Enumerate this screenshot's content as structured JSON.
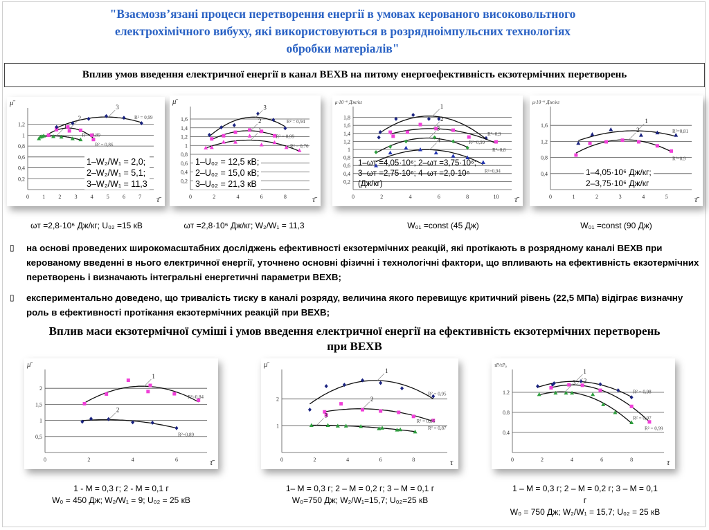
{
  "title": {
    "lines": [
      "\"Взаємозв’язані процеси перетворення енергії в умовах керованого високовольтного",
      "електрохімічного вибуху, які використовуються в розрядноімпульсних технологіях",
      "обробки матеріалів\""
    ]
  },
  "section1": {
    "heading": "Вплив умов введення електричної енергії в канал ВЕХВ на питому енергоефективність екзотермічних перетворень"
  },
  "captions_row1": [
    "ωт =2,8·10⁶ Дж/кг;  U₀₂ =15 кВ",
    "ωт =2,8·10⁶ Дж/кг; W₂/W₁ = 11,3",
    "W₀₁ =const (45 Дж)",
    "W₀₁ =const (90 Дж)"
  ],
  "bullets": [
    {
      "glyph": "▯",
      "text": "на основі проведених широкомасштабних досліджень ефективності екзотермічних реакцій, які протікають в розрядному каналі ВЕХВ при керованому введенні в нього електричної енергії, уточнено основні фізичні і технологічні фактори, що впливають на ефективність екзотермічних перетворень і визначають інтегральні енергетичні параметри ВЕХВ;"
    },
    {
      "glyph": "▯",
      "text": "експериментально доведено, що тривалість тиску в каналі розряду, величина якого перевищує критичний рівень (22,5 МПа) відіграє визначну роль в ефективності протікання екзотермічних реакцій при ВЕХВ;"
    }
  ],
  "section2": {
    "heading_lines": [
      "Вплив маси екзотермічної суміші і умов введення електричної енергії на ефективність екзотермічних перетворень",
      "при ВЕХВ"
    ]
  },
  "captions_row2": [
    [
      "1 -  M = 0,3 г; 2 -  M = 0,1 г",
      "W₀ = 450 Дж;  W₂/W₁ = 9; U₀₂ = 25 кВ"
    ],
    [
      "1–  M = 0,3 г;  2 – M = 0,2 г; 3 –  M = 0,1 г",
      "W₀=750 Дж; W₂/W₁=15,7; U₀₂=25 кВ"
    ],
    [
      "1 –  M =  0,3 г; 2 – M = 0,2 г;  3 – M = 0,1",
      "г",
      "W₀ = 750 Дж; W₂/W₁ = 15,7; U₀₂ = 25 кВ"
    ]
  ],
  "colors": {
    "title": "#2a62c4",
    "navy": "#1a2380",
    "magenta": "#f040d8",
    "green": "#2e9e3e",
    "blue": "#2436b0",
    "curve": "#111111",
    "grid": "#555555"
  },
  "chart_data": [
    {
      "type": "scatter",
      "ylabel": "μ̄",
      "xlabel": "τ̄",
      "xlim": [
        0,
        7.6
      ],
      "ylim": [
        0,
        1.45
      ],
      "xticks": [
        "0",
        "1",
        "2",
        "3",
        "4",
        "5",
        "6",
        "7"
      ],
      "xtick_values": [
        0,
        1,
        2,
        3,
        4,
        5,
        6,
        7
      ],
      "yticks": [
        "0,2",
        "0,4",
        "0,6",
        "0,8",
        "1",
        "1,2"
      ],
      "ytick_values": [
        0.2,
        0.4,
        0.6,
        0.8,
        1,
        1.2
      ],
      "legend": [
        "1–W₂/W₁ = 2,0;",
        "2–W₂/W₁ = 5,1;",
        "3–W₂/W₁ = 11,3"
      ],
      "series": [
        {
          "label": "1",
          "r2": "R² = 0,89",
          "marker": "triangle",
          "color": "green",
          "points": [
            [
              0.7,
              0.94
            ],
            [
              0.8,
              0.97
            ],
            [
              0.9,
              0.98
            ],
            [
              1.0,
              0.99
            ],
            [
              1.3,
              1.0
            ],
            [
              1.6,
              0.98
            ],
            [
              2.1,
              0.97
            ],
            [
              2.8,
              0.94
            ],
            [
              3.3,
              0.92
            ]
          ]
        },
        {
          "label": "2",
          "r2": "R² = 0,86",
          "marker": "square",
          "color": "magenta",
          "points": [
            [
              1.3,
              1.0
            ],
            [
              1.8,
              1.1
            ],
            [
              1.8,
              1.13
            ],
            [
              2.5,
              1.15
            ],
            [
              2.6,
              1.08
            ],
            [
              3.3,
              1.09
            ],
            [
              4.0,
              1.0
            ],
            [
              4.1,
              0.92
            ]
          ]
        },
        {
          "label": "3",
          "r2": "R² = 0,99",
          "marker": "diamond",
          "color": "navy",
          "points": [
            [
              1.8,
              1.15
            ],
            [
              2.8,
              1.22
            ],
            [
              3.8,
              1.3
            ],
            [
              4.9,
              1.35
            ],
            [
              6.0,
              1.32
            ],
            [
              7.1,
              1.22
            ]
          ]
        }
      ]
    },
    {
      "type": "scatter",
      "ylabel": "μ̄",
      "xlabel": "τ̄",
      "xlim": [
        0,
        9.7
      ],
      "ylim": [
        0,
        1.82
      ],
      "xticks": [
        "0",
        "2",
        "4",
        "6",
        "8"
      ],
      "xtick_values": [
        0,
        2,
        4,
        6,
        8
      ],
      "yticks": [
        "0,2",
        "0,4",
        "0,6",
        "0,8",
        "1",
        "1,2",
        "1,4",
        "1,6"
      ],
      "ytick_values": [
        0.2,
        0.4,
        0.6,
        0.8,
        1,
        1.2,
        1.4,
        1.6
      ],
      "legend": [
        "1–U₀₂ = 12,5 кВ;",
        "2–U₀₂ = 15,0 кВ;",
        "3–U₀₂ = 21,3 кВ"
      ],
      "series": [
        {
          "label": "1",
          "r2": "R² = 0,76",
          "marker": "triangle",
          "color": "magenta",
          "points": [
            [
              1.3,
              0.95
            ],
            [
              1.8,
              0.96
            ],
            [
              2.8,
              1.08
            ],
            [
              3.8,
              1.08
            ],
            [
              5,
              1.22
            ],
            [
              6,
              1.02
            ],
            [
              7.1,
              1.07
            ],
            [
              8.1,
              0.96
            ],
            [
              9.2,
              0.89
            ]
          ]
        },
        {
          "label": "2",
          "r2": "R² = 0,99",
          "marker": "square",
          "color": "magenta",
          "points": [
            [
              1.8,
              1.15
            ],
            [
              2.8,
              1.22
            ],
            [
              3.8,
              1.3
            ],
            [
              5,
              1.35
            ],
            [
              6,
              1.32
            ],
            [
              7.1,
              1.22
            ]
          ]
        },
        {
          "label": "3",
          "r2": "R² = 0,94",
          "marker": "diamond",
          "color": "navy",
          "points": [
            [
              1.6,
              1.24
            ],
            [
              2.6,
              1.41
            ],
            [
              3.7,
              1.46
            ],
            [
              5.7,
              1.72
            ],
            [
              7,
              1.58
            ],
            [
              8,
              1.39
            ]
          ]
        }
      ]
    },
    {
      "type": "scatter",
      "ylabel": "μ·10⁻⁶ Дж/кг",
      "xlabel": "τ̄",
      "xlim": [
        0,
        10.8
      ],
      "ylim": [
        0,
        2.0
      ],
      "xticks": [
        "0",
        "2",
        "4",
        "6",
        "8",
        "10"
      ],
      "xtick_values": [
        0,
        2,
        4,
        6,
        8,
        10
      ],
      "yticks": [
        "0,2",
        "0,4",
        "0,6",
        "0,8",
        "1",
        "1,2",
        "1,4",
        "1,6",
        "1,8"
      ],
      "ytick_values": [
        0.2,
        0.4,
        0.6,
        0.8,
        1,
        1.2,
        1.4,
        1.6,
        1.8
      ],
      "legend": [
        "1–ωт =4,05·10⁶; 2–ωт =3,75·10⁶;",
        "3–ωт =2,75·10⁶; 4–ωт =2,0·10⁶",
        "(Дж/кг)"
      ],
      "series": [
        {
          "label": "1",
          "r2": "R²=0,9",
          "marker": "diamond",
          "color": "navy",
          "points": [
            [
              1.8,
              1.3
            ],
            [
              1.9,
              1.43
            ],
            [
              3,
              1.76
            ],
            [
              4.2,
              1.86
            ],
            [
              5.3,
              1.76
            ],
            [
              6,
              1.76
            ],
            [
              9.3,
              1.28
            ]
          ]
        },
        {
          "label": "2",
          "r2": "R²=0,8",
          "marker": "square",
          "color": "magenta",
          "points": [
            [
              2.6,
              1.43
            ],
            [
              2.8,
              1.33
            ],
            [
              3.8,
              1.43
            ],
            [
              4.7,
              1.62
            ],
            [
              5.8,
              1.52
            ],
            [
              7,
              1.48
            ],
            [
              8.1,
              1.31
            ],
            [
              10,
              1.19
            ]
          ]
        },
        {
          "label": "3",
          "r2": "R²=0,99",
          "marker": "diamond",
          "color": "green",
          "points": [
            [
              1.6,
              0.93
            ],
            [
              2.6,
              1.07
            ],
            [
              3.7,
              1.2
            ],
            [
              5.7,
              1.3
            ],
            [
              7,
              1.2
            ],
            [
              8,
              1.04
            ]
          ]
        },
        {
          "label": "4",
          "r2": "R²=0,94",
          "marker": "triangle",
          "color": "blue",
          "points": [
            [
              1.6,
              0.6
            ],
            [
              2.6,
              0.92
            ],
            [
              3.7,
              1.04
            ],
            [
              4.7,
              1.0
            ],
            [
              5.8,
              0.92
            ],
            [
              7,
              0.84
            ],
            [
              8,
              0.8
            ],
            [
              9.1,
              0.68
            ]
          ]
        }
      ]
    },
    {
      "type": "scatter",
      "ylabel": "μ·10⁻⁶ Дж/кг",
      "xlabel": "τ̄",
      "xlim": [
        0,
        5.9
      ],
      "ylim": [
        0,
        2.0
      ],
      "xticks": [
        "0",
        "1",
        "2",
        "3",
        "4",
        "5"
      ],
      "xtick_values": [
        0,
        1,
        2,
        3,
        4,
        5
      ],
      "yticks": [
        "0,4",
        "0,8",
        "1,2",
        "1,6"
      ],
      "ytick_values": [
        0.4,
        0.8,
        1.2,
        1.6
      ],
      "legend": [
        "1–4,05·10⁶ Дж/кг;",
        "2–3,75·10⁶ Дж/кг"
      ],
      "series": [
        {
          "label": "1",
          "r2": "R²=0,81",
          "marker": "triangle",
          "color": "navy",
          "points": [
            [
              1.2,
              1.16
            ],
            [
              1.8,
              1.38
            ],
            [
              2.6,
              1.5
            ],
            [
              3.9,
              1.36
            ],
            [
              4.6,
              1.42
            ],
            [
              5.4,
              1.36
            ]
          ]
        },
        {
          "label": "2",
          "r2": "R²=0,9",
          "marker": "square",
          "color": "magenta",
          "points": [
            [
              1.1,
              0.86
            ],
            [
              1.7,
              1.15
            ],
            [
              2.4,
              1.19
            ],
            [
              3.1,
              1.23
            ],
            [
              3.8,
              1.19
            ],
            [
              4.6,
              1.09
            ],
            [
              5.2,
              0.96
            ]
          ]
        }
      ]
    },
    {
      "type": "scatter",
      "ylabel": "μ̄",
      "xlabel": "τ̄",
      "xlim": [
        0,
        7.2
      ],
      "ylim": [
        0,
        2.5
      ],
      "xticks": [
        "0",
        "2",
        "4",
        "6"
      ],
      "xtick_values": [
        0,
        2,
        4,
        6
      ],
      "yticks": [
        "0,5",
        "1",
        "1,5",
        "2"
      ],
      "ytick_values": [
        0.5,
        1,
        1.5,
        2
      ],
      "legend": [],
      "series": [
        {
          "label": "1",
          "r2": "R²=0,84",
          "marker": "square",
          "color": "magenta",
          "points": [
            [
              1.8,
              1.52
            ],
            [
              2.8,
              1.82
            ],
            [
              3.8,
              2.25
            ],
            [
              4.8,
              2.09
            ],
            [
              4.7,
              1.9
            ],
            [
              5.9,
              1.83
            ],
            [
              7,
              1.63
            ]
          ]
        },
        {
          "label": "2",
          "r2": "R²=0,89",
          "marker": "diamond",
          "color": "navy",
          "points": [
            [
              1.7,
              0.96
            ],
            [
              2.1,
              1.05
            ],
            [
              2.9,
              1.04
            ],
            [
              4,
              0.94
            ],
            [
              4.9,
              0.93
            ],
            [
              6,
              0.76
            ]
          ]
        }
      ]
    },
    {
      "type": "scatter",
      "ylabel": "μ̄",
      "xlabel": "τ",
      "xlim": [
        0,
        9.8
      ],
      "ylim": [
        0,
        3.0
      ],
      "xticks": [
        "0",
        "2",
        "4",
        "6",
        "8"
      ],
      "xtick_values": [
        0,
        2,
        4,
        6,
        8
      ],
      "yticks": [
        "1",
        "2"
      ],
      "ytick_values": [
        1,
        2
      ],
      "legend": [],
      "series": [
        {
          "label": "1",
          "r2": "R² = 0,95",
          "marker": "diamond",
          "color": "navy",
          "points": [
            [
              1.7,
              1.6
            ],
            [
              2.7,
              2.48
            ],
            [
              3.8,
              2.53
            ],
            [
              4.9,
              2.7
            ],
            [
              6,
              2.6
            ],
            [
              7.3,
              2.4
            ],
            [
              9.2,
              2.1
            ]
          ]
        },
        {
          "label": "2",
          "r2": "R² = 0,87",
          "marker": "square",
          "color": "magenta",
          "points": [
            [
              2.6,
              1.52
            ],
            [
              2.7,
              1.4
            ],
            [
              3.6,
              1.82
            ],
            [
              4.9,
              1.6
            ],
            [
              6,
              1.55
            ],
            [
              7.1,
              1.5
            ],
            [
              8,
              1.35
            ],
            [
              9.2,
              1.2
            ]
          ]
        },
        {
          "label": "3",
          "r2": "R² = 0,86",
          "marker": "triangle",
          "color": "green",
          "points": [
            [
              1.8,
              1.02
            ],
            [
              2.8,
              1.02
            ],
            [
              3.4,
              1.0
            ],
            [
              3.9,
              1.0
            ],
            [
              4.8,
              0.98
            ],
            [
              5.9,
              0.9
            ],
            [
              6.1,
              0.92
            ],
            [
              7,
              0.85
            ],
            [
              7.2,
              0.86
            ],
            [
              8.1,
              0.78
            ]
          ]
        }
      ]
    },
    {
      "type": "scatter",
      "ylabel": "τP/τP₀",
      "xlabel": "τ",
      "xlim": [
        0,
        9.9
      ],
      "ylim": [
        0,
        1.6
      ],
      "xticks": [
        "0",
        "2",
        "4",
        "6",
        "8"
      ],
      "xtick_values": [
        0,
        2,
        4,
        6,
        8
      ],
      "yticks": [
        "0.4",
        "0.8",
        "1.2"
      ],
      "ytick_values": [
        0.4,
        0.8,
        1.2
      ],
      "legend": [],
      "series": [
        {
          "label": "1",
          "r2": "R² = 0,98",
          "marker": "diamond",
          "color": "navy",
          "points": [
            [
              1.7,
              1.32
            ],
            [
              2.7,
              1.35
            ],
            [
              2.8,
              1.38
            ],
            [
              4.6,
              1.42
            ],
            [
              5.9,
              1.36
            ],
            [
              7.1,
              1.24
            ],
            [
              8,
              1.1
            ]
          ]
        },
        {
          "label": "2",
          "r2": "R² = 0,99",
          "marker": "square",
          "color": "magenta",
          "points": [
            [
              2.6,
              1.29
            ],
            [
              3.8,
              1.35
            ],
            [
              4.7,
              1.34
            ],
            [
              5.9,
              1.24
            ],
            [
              8,
              0.92
            ],
            [
              9.2,
              0.61
            ]
          ]
        },
        {
          "label": "3",
          "r2": "R² = 0,97",
          "marker": "triangle",
          "color": "green",
          "points": [
            [
              1.8,
              1.16
            ],
            [
              2.9,
              1.19
            ],
            [
              3.6,
              1.19
            ],
            [
              4,
              1.19
            ],
            [
              5.4,
              1.16
            ],
            [
              6.1,
              0.96
            ],
            [
              6.9,
              0.8
            ],
            [
              8,
              0.6
            ]
          ]
        }
      ]
    }
  ]
}
